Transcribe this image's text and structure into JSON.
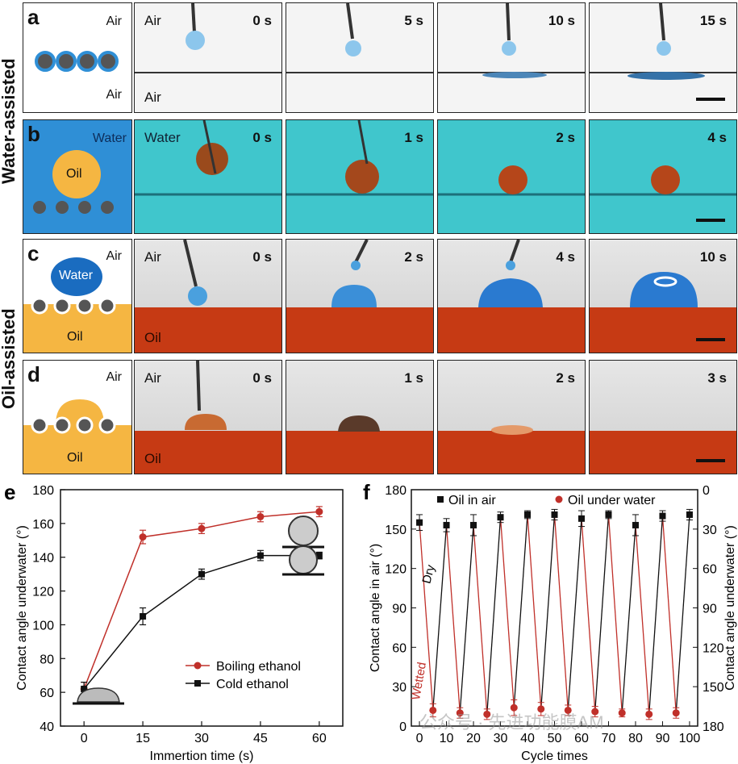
{
  "side_labels": {
    "water_assisted": "Water-assisted",
    "oil_assisted": "Oil-assisted"
  },
  "panel_a": {
    "letter": "a",
    "top_label": "Air",
    "bottom_label": "Air",
    "frame_top_label": "Air",
    "frame_bottom_label": "Air",
    "times": [
      "0 s",
      "5 s",
      "10 s",
      "15 s"
    ]
  },
  "panel_b": {
    "letter": "b",
    "medium_label": "Water",
    "drop_label": "Oil",
    "frame_top_label": "Water",
    "times": [
      "0 s",
      "1 s",
      "2 s",
      "4 s"
    ]
  },
  "panel_c": {
    "letter": "c",
    "top_label": "Air",
    "drop_label": "Water",
    "bottom_label": "Oil",
    "frame_top_label": "Air",
    "frame_bottom_label": "Oil",
    "times": [
      "0 s",
      "2 s",
      "4 s",
      "10 s"
    ]
  },
  "panel_d": {
    "letter": "d",
    "top_label": "Air",
    "bottom_label": "Oil",
    "frame_top_label": "Air",
    "frame_bottom_label": "Oil",
    "times": [
      "0 s",
      "1 s",
      "2 s",
      "3 s"
    ]
  },
  "watermark": "公众号 · 先进功能膜AM",
  "colors": {
    "water": "#2f8fd6",
    "water_frame": "#40c6cc",
    "oil": "#f5b642",
    "oil_frame": "#c63a14",
    "red_series": "#c0302a",
    "black_series": "#111111",
    "particle": "#555555"
  },
  "chart_data": [
    {
      "type": "line",
      "panel_letter": "e",
      "xlabel": "Immertion time (s)",
      "ylabel": "Contact angle underwater (°)",
      "xlim": [
        -6,
        66
      ],
      "ylim": [
        40,
        180
      ],
      "xticks": [
        0,
        15,
        30,
        45,
        60
      ],
      "yticks": [
        40,
        60,
        80,
        100,
        120,
        140,
        160,
        180
      ],
      "legend_position": "bottom-right",
      "series": [
        {
          "name": "Boiling ethanol",
          "x": [
            0,
            15,
            30,
            45,
            60
          ],
          "values": [
            62,
            152,
            157,
            164,
            167
          ],
          "err": [
            4,
            4,
            3,
            3,
            3
          ]
        },
        {
          "name": "Cold ethanol",
          "x": [
            0,
            15,
            30,
            45,
            60
          ],
          "values": [
            62,
            105,
            130,
            141,
            141
          ],
          "err": [
            4,
            5,
            3,
            3,
            2
          ]
        }
      ]
    },
    {
      "type": "line",
      "panel_letter": "f",
      "xlabel": "Cycle times",
      "ylabel_left": "Contact angle in air (°)",
      "ylabel_right": "Contact angle underwater (°)",
      "xlim": [
        -3,
        103
      ],
      "ylim_left": [
        0,
        180
      ],
      "ylim_right": [
        180,
        0
      ],
      "xticks": [
        0,
        10,
        20,
        30,
        40,
        50,
        60,
        70,
        80,
        90,
        100
      ],
      "yticks_left": [
        0,
        30,
        60,
        90,
        120,
        150,
        180
      ],
      "yticks_right": [
        0,
        30,
        60,
        90,
        120,
        150,
        180
      ],
      "annotations": [
        "Dry",
        "Wetted"
      ],
      "legend_position": "top",
      "series": [
        {
          "name": "Oil in air",
          "axis": "left",
          "x": [
            0,
            10,
            20,
            30,
            40,
            50,
            60,
            70,
            80,
            90,
            100
          ],
          "values": [
            155,
            153,
            153,
            159,
            161,
            161,
            158,
            161,
            153,
            160,
            161
          ],
          "err": [
            6,
            5,
            8,
            4,
            3,
            4,
            6,
            3,
            8,
            4,
            4
          ]
        },
        {
          "name": "Oil under water",
          "axis": "right",
          "x": [
            5,
            15,
            25,
            35,
            45,
            55,
            65,
            75,
            85,
            95
          ],
          "values": [
            168,
            170,
            171,
            166,
            167,
            168,
            169,
            170,
            171,
            170
          ],
          "err": [
            5,
            4,
            4,
            6,
            5,
            4,
            4,
            3,
            4,
            4
          ]
        }
      ]
    }
  ]
}
